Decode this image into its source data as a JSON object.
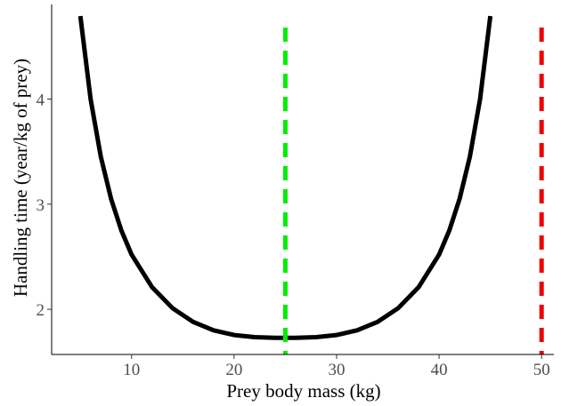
{
  "chart_data": {
    "type": "line",
    "title": "",
    "xlabel": "Prey body mass (kg)",
    "ylabel": "Handling time (year/kg of prey)",
    "xlim": [
      2.2,
      51.2
    ],
    "ylim": [
      1.57,
      4.9
    ],
    "xticks": [
      10,
      20,
      30,
      40,
      50
    ],
    "yticks": [
      2,
      3,
      4
    ],
    "grid": false,
    "series": [
      {
        "color": "#000000",
        "points": [
          [
            5,
            4.79
          ],
          [
            6,
            4.0
          ],
          [
            7,
            3.45
          ],
          [
            8,
            3.05
          ],
          [
            9,
            2.75
          ],
          [
            10,
            2.52
          ],
          [
            12,
            2.21
          ],
          [
            14,
            2.01
          ],
          [
            16,
            1.88
          ],
          [
            18,
            1.8
          ],
          [
            20,
            1.755
          ],
          [
            22,
            1.735
          ],
          [
            24,
            1.728
          ],
          [
            25,
            1.728
          ],
          [
            26,
            1.728
          ],
          [
            28,
            1.735
          ],
          [
            30,
            1.755
          ],
          [
            32,
            1.8
          ],
          [
            34,
            1.88
          ],
          [
            36,
            2.01
          ],
          [
            38,
            2.21
          ],
          [
            40,
            2.52
          ],
          [
            41,
            2.75
          ],
          [
            42,
            3.05
          ],
          [
            43,
            3.45
          ],
          [
            44,
            4.0
          ],
          [
            45,
            4.79
          ]
        ]
      }
    ],
    "reference_lines": [
      {
        "x": 25,
        "color": "#00ee00",
        "style": "dashed"
      },
      {
        "x": 50,
        "color": "#ee0000",
        "style": "dashed"
      }
    ]
  }
}
